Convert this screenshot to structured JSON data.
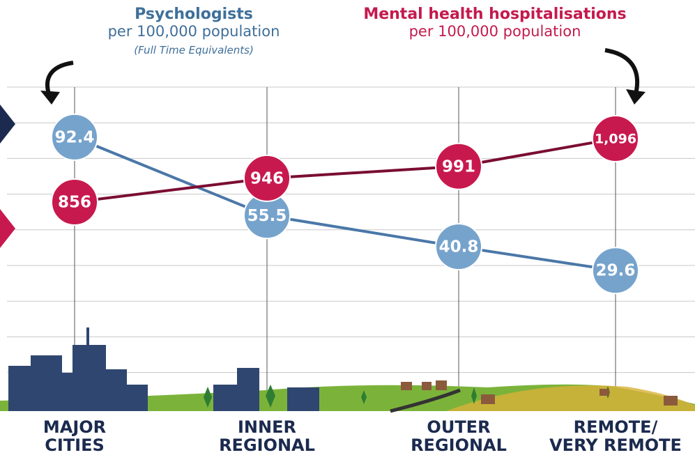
{
  "chart_data": {
    "type": "line",
    "categories": [
      "MAJOR\nCITIES",
      "INNER\nREGIONAL",
      "OUTER\nREGIONAL",
      "REMOTE/\nVERY REMOTE"
    ],
    "series": [
      {
        "name": "Psychologists",
        "unit_note": "per 100,000 population",
        "note": "(Full Time Equivalents)",
        "color": "#4a77a8",
        "marker_color": "#76a3cc",
        "values": [
          92.4,
          55.5,
          40.8,
          29.6
        ]
      },
      {
        "name": "Mental health hospitalisations",
        "unit_note": "per 100,000 population",
        "color": "#7a0d33",
        "marker_color": "#c8194e",
        "axis": "y2",
        "values": [
          856,
          946,
          991,
          1096
        ],
        "value_labels": [
          "856",
          "946",
          "991",
          "1,096"
        ]
      }
    ],
    "ylim": [
      -35,
      116
    ],
    "y2lim": [
      78,
      1291
    ],
    "grid": true
  }
}
